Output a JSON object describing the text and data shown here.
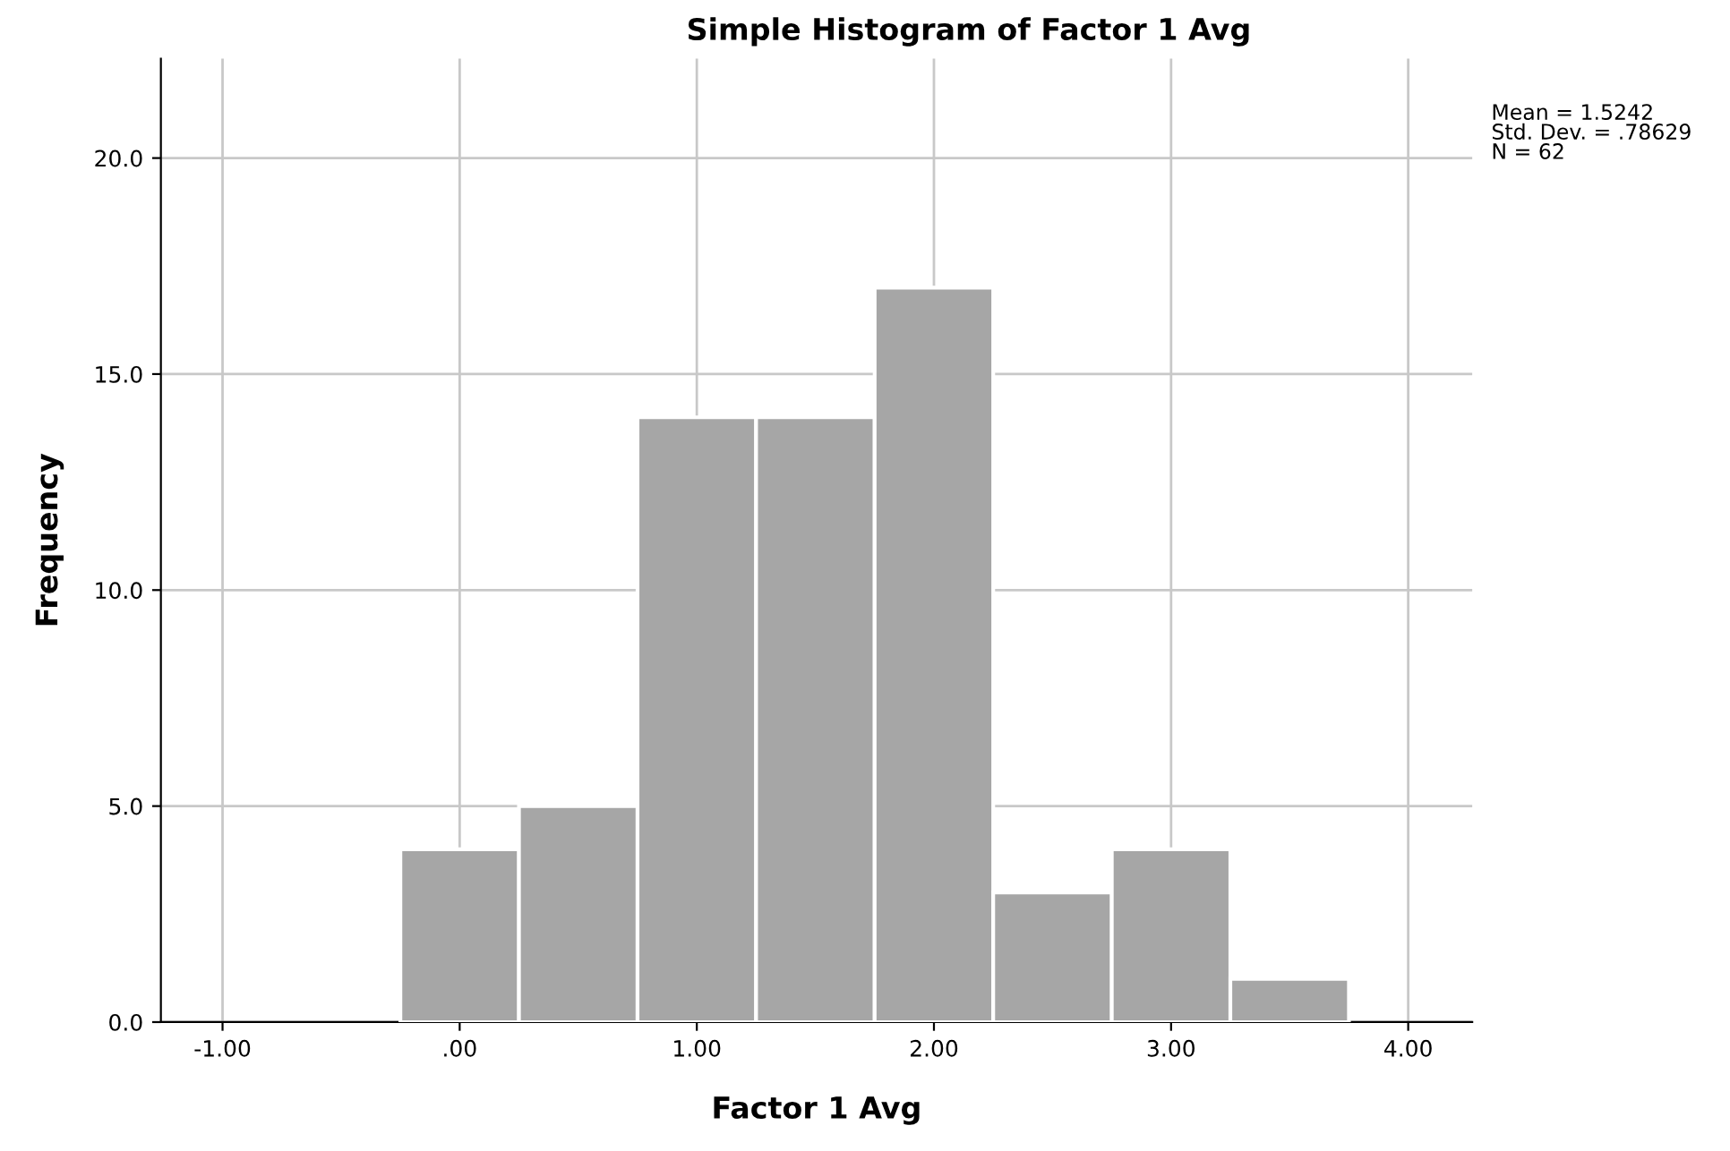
{
  "chart_data": {
    "type": "histogram",
    "title": "Simple Histogram of Factor 1 Avg",
    "xlabel": "Factor 1 Avg",
    "ylabel": "Frequency",
    "bins": [
      -0.25,
      0.25,
      0.75,
      1.25,
      1.75,
      2.25,
      2.75,
      3.25,
      3.75
    ],
    "values": [
      4,
      5,
      14,
      14,
      17,
      3,
      4,
      1
    ],
    "color": "#a6a6a6",
    "xlim": [
      -1.26,
      4.27
    ],
    "ylim": [
      0,
      22.3
    ],
    "xticks": [
      {
        "value": -1,
        "label": "-1.00"
      },
      {
        "value": 0,
        "label": ".00"
      },
      {
        "value": 1,
        "label": "1.00"
      },
      {
        "value": 2,
        "label": "2.00"
      },
      {
        "value": 3,
        "label": "3.00"
      },
      {
        "value": 4,
        "label": "4.00"
      }
    ],
    "yticks": [
      {
        "value": 0,
        "label": "0.0"
      },
      {
        "value": 5,
        "label": "5.0"
      },
      {
        "value": 10,
        "label": "10.0"
      },
      {
        "value": 15,
        "label": "15.0"
      },
      {
        "value": 20,
        "label": "20.0"
      }
    ],
    "grid": true,
    "annotations": [
      "Mean = 1.5242\nStd. Dev. = .78629\nN = 62"
    ]
  }
}
